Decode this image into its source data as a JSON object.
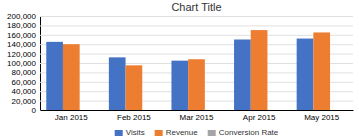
{
  "chart_data": {
    "type": "bar",
    "title": "Chart Title",
    "categories": [
      "Jan 2015",
      "Feb 2015",
      "Mar 2015",
      "Apr 2015",
      "May 2015"
    ],
    "series": [
      {
        "name": "Visits",
        "color": "#4472c4",
        "values": [
          145000,
          112000,
          105000,
          150000,
          152000
        ]
      },
      {
        "name": "Revenue",
        "color": "#ed7d31",
        "values": [
          140000,
          95000,
          108000,
          170000,
          165000
        ]
      },
      {
        "name": "Conversion Rate",
        "color": "#a5a5a5",
        "values": [
          0,
          0,
          0,
          0,
          0
        ]
      }
    ],
    "ylim": [
      0,
      200000
    ],
    "yticks": [
      0,
      {
        "value": 20000,
        "label": "20,000"
      },
      {
        "value": 40000,
        "label": "40,000"
      },
      {
        "value": 60000,
        "label": "60,000"
      },
      {
        "value": 80000,
        "label": "80,000"
      },
      {
        "value": 100000,
        "label": "100,000"
      },
      {
        "value": 120000,
        "label": "120,000"
      },
      {
        "value": 140000,
        "label": "140,000"
      },
      {
        "value": 160000,
        "label": "160,000"
      },
      {
        "value": 180000,
        "label": "180,000"
      },
      {
        "value": 200000,
        "label": "200,000"
      }
    ],
    "grid": true,
    "legend": "bottom"
  }
}
